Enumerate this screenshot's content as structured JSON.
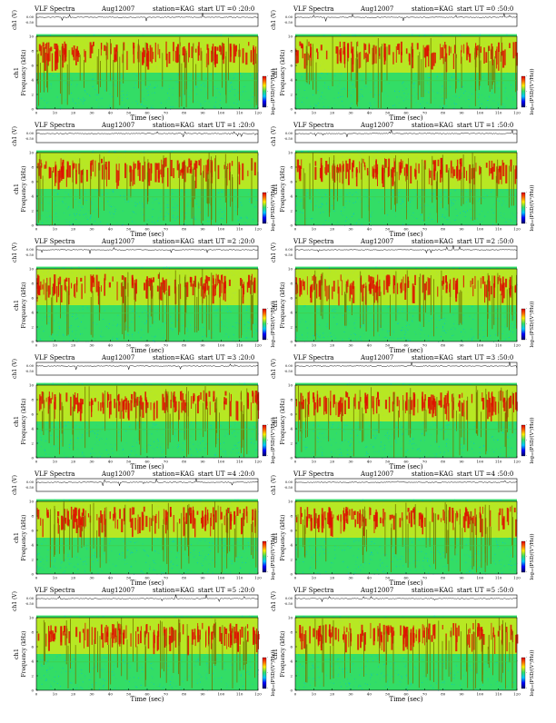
{
  "header": {
    "title": "VLF Spectra",
    "date": "Aug12007",
    "station": "station=KAG",
    "start_prefix": "start  UT ="
  },
  "labels": {
    "ch1_volts": "ch1 (V)",
    "ch1": "ch1",
    "frequency": "Frequency  (kHz)",
    "time": "Time  (sec)",
    "colorbar": "log₁₀(PSD/(V²/Hz))"
  },
  "colors": {
    "background": "#00ccee",
    "mid": "#33dd66",
    "high": "#ffee00",
    "peak": "#dd1100",
    "stripe": "#777700"
  },
  "chart_data": [
    {
      "type": "heatmap",
      "title": "VLF Spectra",
      "start_ut": "0 :20:0",
      "xlabel": "Time  (sec)",
      "ylabel": "Frequency  (kHz)",
      "xlim": [
        0,
        120
      ],
      "ylim": [
        0,
        10
      ],
      "x_ticks": [
        0,
        10,
        20,
        30,
        40,
        50,
        60,
        70,
        80,
        90,
        100,
        110,
        120
      ],
      "y_ticks": [
        0,
        2,
        4,
        6,
        8,
        10
      ],
      "trace_ticks": [
        "0.00",
        "-0.50"
      ],
      "colorbar_ticks": [
        "-",
        "-",
        "-"
      ]
    },
    {
      "type": "heatmap",
      "title": "VLF Spectra",
      "start_ut": "0 :50:0",
      "xlabel": "Time  (sec)",
      "ylabel": "Frequency  (kHz)",
      "xlim": [
        0,
        120
      ],
      "ylim": [
        0,
        10
      ],
      "x_ticks": [
        0,
        10,
        20,
        30,
        40,
        50,
        60,
        70,
        80,
        90,
        100,
        110,
        120
      ],
      "y_ticks": [
        0,
        2,
        4,
        6,
        8,
        10
      ],
      "trace_ticks": [
        "0.00",
        "-0.50"
      ],
      "colorbar_ticks": [
        "-",
        "-",
        "-"
      ]
    },
    {
      "type": "heatmap",
      "title": "VLF Spectra",
      "start_ut": "1 :20:0",
      "xlabel": "Time  (sec)",
      "ylabel": "Frequency  (kHz)",
      "xlim": [
        0,
        120
      ],
      "ylim": [
        0,
        10
      ],
      "x_ticks": [
        0,
        10,
        20,
        30,
        40,
        50,
        60,
        70,
        80,
        90,
        100,
        110,
        120
      ],
      "y_ticks": [
        0,
        2,
        4,
        6,
        8,
        10
      ],
      "trace_ticks": [
        "0.00",
        "-0.50"
      ],
      "colorbar_ticks": [
        "-",
        "-",
        "-"
      ]
    },
    {
      "type": "heatmap",
      "title": "VLF Spectra",
      "start_ut": "1 :50:0",
      "xlabel": "Time  (sec)",
      "ylabel": "Frequency  (kHz)",
      "xlim": [
        0,
        120
      ],
      "ylim": [
        0,
        10
      ],
      "x_ticks": [
        0,
        10,
        20,
        30,
        40,
        50,
        60,
        70,
        80,
        90,
        100,
        110,
        120
      ],
      "y_ticks": [
        0,
        2,
        4,
        6,
        8,
        10
      ],
      "trace_ticks": [
        "0.00",
        "-0.50"
      ],
      "colorbar_ticks": [
        "-",
        "-",
        "-"
      ]
    },
    {
      "type": "heatmap",
      "title": "VLF Spectra",
      "start_ut": "2 :20:0",
      "xlabel": "Time  (sec)",
      "ylabel": "Frequency  (kHz)",
      "xlim": [
        0,
        120
      ],
      "ylim": [
        0,
        10
      ],
      "x_ticks": [
        0,
        10,
        20,
        30,
        40,
        50,
        60,
        70,
        80,
        90,
        100,
        110,
        120
      ],
      "y_ticks": [
        0,
        2,
        4,
        6,
        8,
        10
      ],
      "trace_ticks": [
        "0.00",
        "-0.50"
      ],
      "colorbar_ticks": [
        "-",
        "-",
        "-"
      ]
    },
    {
      "type": "heatmap",
      "title": "VLF Spectra",
      "start_ut": "2 :50:0",
      "xlabel": "Time  (sec)",
      "ylabel": "Frequency  (kHz)",
      "xlim": [
        0,
        120
      ],
      "ylim": [
        0,
        10
      ],
      "x_ticks": [
        0,
        10,
        20,
        30,
        40,
        50,
        60,
        70,
        80,
        90,
        100,
        110,
        120
      ],
      "y_ticks": [
        0,
        2,
        4,
        6,
        8,
        10
      ],
      "trace_ticks": [
        "0.00",
        "-0.50"
      ],
      "colorbar_ticks": [
        "-",
        "-",
        "-"
      ]
    },
    {
      "type": "heatmap",
      "title": "VLF Spectra",
      "start_ut": "3 :20:0",
      "xlabel": "Time  (sec)",
      "ylabel": "Frequency  (kHz)",
      "xlim": [
        0,
        120
      ],
      "ylim": [
        0,
        10
      ],
      "x_ticks": [
        0,
        10,
        20,
        30,
        40,
        50,
        60,
        70,
        80,
        90,
        100,
        110,
        120
      ],
      "y_ticks": [
        0,
        2,
        4,
        6,
        8,
        10
      ],
      "trace_ticks": [
        "0.00",
        "-0.50"
      ],
      "colorbar_ticks": [
        "-",
        "-",
        "-"
      ]
    },
    {
      "type": "heatmap",
      "title": "VLF Spectra",
      "start_ut": "3 :50:0",
      "xlabel": "Time  (sec)",
      "ylabel": "Frequency  (kHz)",
      "xlim": [
        0,
        120
      ],
      "ylim": [
        0,
        10
      ],
      "x_ticks": [
        0,
        10,
        20,
        30,
        40,
        50,
        60,
        70,
        80,
        90,
        100,
        110,
        120
      ],
      "y_ticks": [
        0,
        2,
        4,
        6,
        8,
        10
      ],
      "trace_ticks": [
        "0.00",
        "-0.50"
      ],
      "colorbar_ticks": [
        "-",
        "-",
        "-"
      ]
    },
    {
      "type": "heatmap",
      "title": "VLF Spectra",
      "start_ut": "4 :20:0",
      "xlabel": "Time  (sec)",
      "ylabel": "Frequency  (kHz)",
      "xlim": [
        0,
        120
      ],
      "ylim": [
        0,
        10
      ],
      "x_ticks": [
        0,
        10,
        20,
        30,
        40,
        50,
        60,
        70,
        80,
        90,
        100,
        110,
        120
      ],
      "y_ticks": [
        0,
        2,
        4,
        6,
        8,
        10
      ],
      "trace_ticks": [
        "0.00",
        "-0.50"
      ],
      "colorbar_ticks": [
        "-",
        "-",
        "-"
      ]
    },
    {
      "type": "heatmap",
      "title": "VLF Spectra",
      "start_ut": "4 :50:0",
      "xlabel": "Time  (sec)",
      "ylabel": "Frequency  (kHz)",
      "xlim": [
        0,
        120
      ],
      "ylim": [
        0,
        10
      ],
      "x_ticks": [
        0,
        10,
        20,
        30,
        40,
        50,
        60,
        70,
        80,
        90,
        100,
        110,
        120
      ],
      "y_ticks": [
        0,
        2,
        4,
        6,
        8,
        10
      ],
      "trace_ticks": [
        "0.00",
        "-0.50"
      ],
      "colorbar_ticks": [
        "-",
        "-",
        "-"
      ]
    },
    {
      "type": "heatmap",
      "title": "VLF Spectra",
      "start_ut": "5 :20:0",
      "xlabel": "Time  (sec)",
      "ylabel": "Frequency  (kHz)",
      "xlim": [
        0,
        120
      ],
      "ylim": [
        0,
        10
      ],
      "x_ticks": [
        0,
        10,
        20,
        30,
        40,
        50,
        60,
        70,
        80,
        90,
        100,
        110,
        120
      ],
      "y_ticks": [
        0,
        2,
        4,
        6,
        8,
        10
      ],
      "trace_ticks": [
        "0.00",
        "-0.50"
      ],
      "colorbar_ticks": [
        "-",
        "-",
        "-"
      ]
    },
    {
      "type": "heatmap",
      "title": "VLF Spectra",
      "start_ut": "5 :50:0",
      "xlabel": "Time  (sec)",
      "ylabel": "Frequency  (kHz)",
      "xlim": [
        0,
        120
      ],
      "ylim": [
        0,
        10
      ],
      "x_ticks": [
        0,
        10,
        20,
        30,
        40,
        50,
        60,
        70,
        80,
        90,
        100,
        110,
        120
      ],
      "y_ticks": [
        0,
        2,
        4,
        6,
        8,
        10
      ],
      "trace_ticks": [
        "0.00",
        "-0.50"
      ],
      "colorbar_ticks": [
        "-",
        "-",
        "-"
      ]
    }
  ]
}
